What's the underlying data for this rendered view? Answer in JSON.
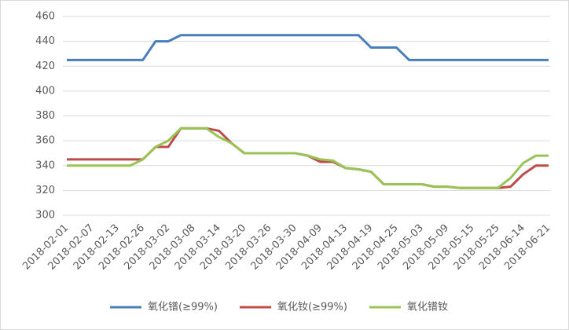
{
  "chart_data": {
    "type": "line",
    "categories": [
      "2018-02-01",
      null,
      "2018-02-07",
      null,
      "2018-02-13",
      null,
      "2018-02-26",
      null,
      "2018-03-02",
      null,
      "2018-03-08",
      null,
      "2018-03-14",
      null,
      "2018-03-20",
      null,
      "2018-03-26",
      null,
      "2018-03-30",
      null,
      "2018-04-09",
      null,
      "2018-04-13",
      null,
      "2018-04-19",
      null,
      "2018-04-25",
      null,
      "2018-05-03",
      null,
      "2018-05-09",
      null,
      "2018-05-15",
      null,
      "2018-05-25",
      null,
      "2018-06-14",
      null,
      "2018-06-21"
    ],
    "series": [
      {
        "name": "氧化镨(≥99%)",
        "color": "#4a7ebb",
        "values": [
          425,
          425,
          425,
          425,
          425,
          425,
          425,
          440,
          440,
          445,
          445,
          445,
          445,
          445,
          445,
          445,
          445,
          445,
          445,
          445,
          445,
          445,
          445,
          445,
          435,
          435,
          435,
          425,
          425,
          425,
          425,
          425,
          425,
          425,
          425,
          425,
          425,
          425,
          425
        ]
      },
      {
        "name": "氧化钕(≥99%)",
        "color": "#be4b48",
        "values": [
          345,
          345,
          345,
          345,
          345,
          345,
          345,
          355,
          355,
          370,
          370,
          370,
          368,
          358,
          350,
          350,
          350,
          350,
          350,
          348,
          343,
          343,
          338,
          337,
          335,
          325,
          325,
          325,
          325,
          323,
          323,
          322,
          322,
          322,
          322,
          323,
          333,
          340,
          340
        ]
      },
      {
        "name": "氧化镨钕",
        "color": "#98c455",
        "values": [
          340,
          340,
          340,
          340,
          340,
          340,
          345,
          355,
          360,
          370,
          370,
          370,
          363,
          358,
          350,
          350,
          350,
          350,
          350,
          348,
          345,
          344,
          338,
          337,
          335,
          325,
          325,
          325,
          325,
          323,
          323,
          322,
          322,
          322,
          322,
          330,
          342,
          348,
          348
        ]
      }
    ],
    "ylim": [
      300,
      460
    ],
    "yticks": [
      300,
      320,
      340,
      360,
      380,
      400,
      420,
      440,
      460
    ],
    "grid": true
  }
}
